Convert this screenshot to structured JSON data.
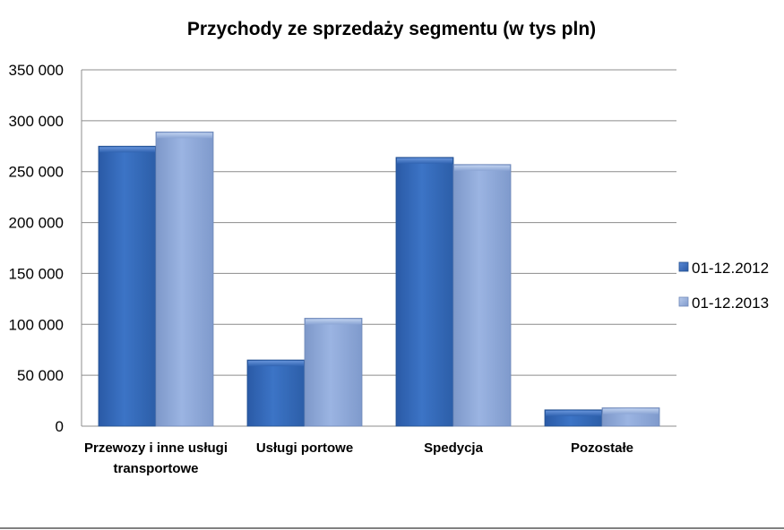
{
  "chart_data": {
    "type": "bar",
    "title": "Przychody ze sprzedaży segmentu (w tys pln)",
    "xlabel": "",
    "ylabel": "",
    "categories": [
      [
        "Przewozy i inne usługi",
        "transportowe"
      ],
      [
        "Usługi portowe"
      ],
      [
        "Spedycja"
      ],
      [
        "Pozostałe"
      ]
    ],
    "series": [
      {
        "name": "01-12.2012",
        "values": [
          275000,
          65000,
          264000,
          16000
        ],
        "color": "#3a6fbf"
      },
      {
        "name": "01-12.2013",
        "values": [
          289000,
          106000,
          257000,
          18000
        ],
        "color": "#8fa9d8"
      }
    ],
    "ylim": [
      0,
      350000
    ],
    "yticks": [
      0,
      50000,
      100000,
      150000,
      200000,
      250000,
      300000,
      350000
    ],
    "ytick_labels": [
      "0",
      "50 000",
      "100 000",
      "150 000",
      "200 000",
      "250 000",
      "300 000",
      "350 000"
    ],
    "grid": true,
    "legend_position": "right"
  }
}
